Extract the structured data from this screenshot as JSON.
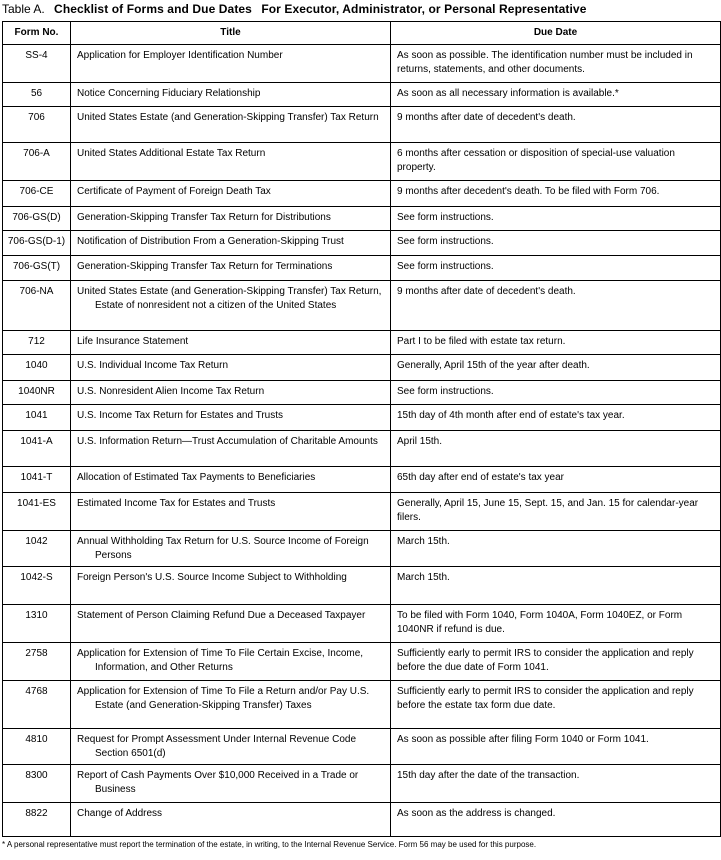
{
  "caption": {
    "prefix": "Table A.",
    "title": "Checklist of Forms and Due Dates",
    "subtitle": "For Executor, Administrator, or Personal Representative"
  },
  "headers": [
    "Form No.",
    "Title",
    "Due Date"
  ],
  "rows": [
    {
      "form": "SS-4",
      "title": "Application for Employer Identification Number",
      "due": "As soon as possible. The identification number must be included in returns, statements, and other documents."
    },
    {
      "form": "56",
      "title": "Notice Concerning Fiduciary Relationship",
      "due": "As soon as all necessary information is available.*"
    },
    {
      "form": "706",
      "title": "United States Estate (and Generation-Skipping Transfer) Tax Return",
      "due": "9 months after date of decedent's death."
    },
    {
      "form": "706-A",
      "title": "United States Additional Estate Tax Return",
      "due": "6 months after cessation or disposition of special-use valuation property."
    },
    {
      "form": "706-CE",
      "title": "Certificate of Payment of Foreign Death Tax",
      "due": "9 months after decedent's death. To be filed with Form 706."
    },
    {
      "form": "706-GS(D)",
      "title": "Generation-Skipping Transfer Tax Return for Distributions",
      "due": "See form instructions."
    },
    {
      "form": "706-GS(D-1)",
      "title": "Notification of Distribution From a Generation-Skipping Trust",
      "due": "See form instructions."
    },
    {
      "form": "706-GS(T)",
      "title": "Generation-Skipping Transfer Tax Return for Terminations",
      "due": "See form instructions."
    },
    {
      "form": "706-NA",
      "title": "United States Estate (and Generation-Skipping Transfer) Tax Return, Estate of nonresident not a citizen of the United States",
      "due": "9 months after date of decedent's death."
    },
    {
      "form": "712",
      "title": "Life Insurance Statement",
      "due": "Part I to be filed with estate tax return."
    },
    {
      "form": "1040",
      "title": "U.S. Individual Income Tax Return",
      "due": "Generally, April 15th of the year after death."
    },
    {
      "form": "1040NR",
      "title": "U.S. Nonresident Alien Income Tax Return",
      "due": "See form instructions."
    },
    {
      "form": "1041",
      "title": "U.S. Income Tax Return for Estates and Trusts",
      "due": "15th day of 4th month after end of estate's tax year."
    },
    {
      "form": "1041-A",
      "title": "U.S. Information Return—Trust Accumulation of Charitable Amounts",
      "due": "April 15th."
    },
    {
      "form": "1041-T",
      "title": "Allocation of Estimated Tax Payments to Beneficiaries",
      "due": "65th day after end of estate's tax year"
    },
    {
      "form": "1041-ES",
      "title": "Estimated Income Tax for Estates and Trusts",
      "due": "Generally, April 15, June 15, Sept. 15, and Jan. 15 for calendar-year filers."
    },
    {
      "form": "1042",
      "title": "Annual Withholding Tax Return for U.S. Source Income of Foreign Persons",
      "due": "March 15th."
    },
    {
      "form": "1042-S",
      "title": "Foreign Person's U.S. Source Income Subject to Withholding",
      "due": "March 15th."
    },
    {
      "form": "1310",
      "title": "Statement of Person Claiming Refund Due a Deceased Taxpayer",
      "due": "To be filed with Form 1040, Form 1040A, Form 1040EZ, or Form 1040NR if refund is due."
    },
    {
      "form": "2758",
      "title": "Application for Extension of Time To File Certain Excise, Income, Information, and Other Returns",
      "due": "Sufficiently early to permit IRS to consider the application and reply before the due date of Form 1041."
    },
    {
      "form": "4768",
      "title": "Application for Extension of Time To File a Return and/or Pay U.S. Estate (and Generation-Skipping Transfer) Taxes",
      "due": "Sufficiently early to permit IRS to consider the application and reply before the estate tax form due date."
    },
    {
      "form": "4810",
      "title": "Request for Prompt Assessment Under Internal Revenue Code Section 6501(d)",
      "due": "As soon as possible after filing Form 1040 or Form 1041."
    },
    {
      "form": "8300",
      "title": "Report of Cash Payments Over $10,000 Received in a Trade or Business",
      "due": "15th day after the date of the transaction."
    },
    {
      "form": "8822",
      "title": "Change of Address",
      "due": "As soon as the address is changed."
    }
  ],
  "footnote": "* A personal representative must report the termination of the estate, in writing, to the Internal Revenue Service. Form 56 may be used for this purpose."
}
